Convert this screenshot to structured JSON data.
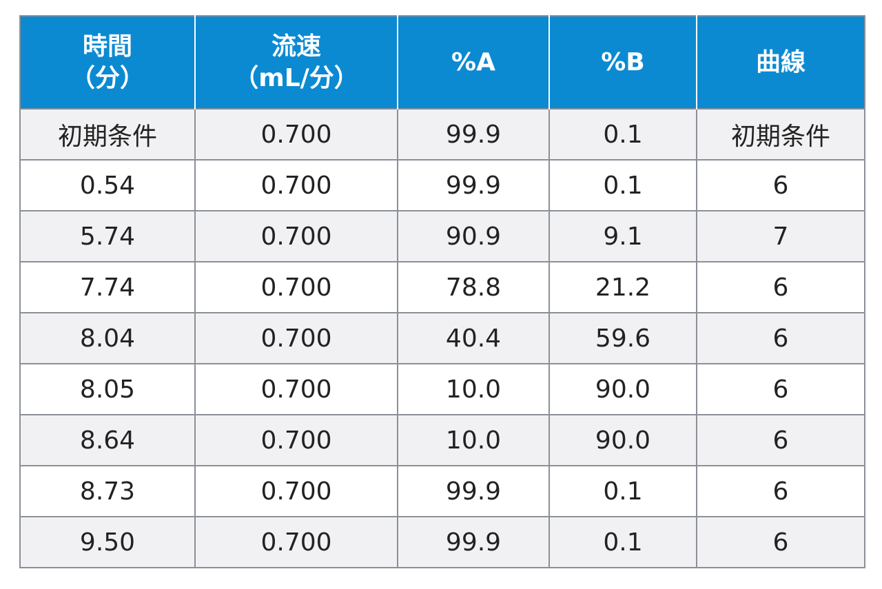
{
  "table": {
    "headers": [
      [
        "時間",
        "（分）"
      ],
      [
        "流速",
        "（mL/分）"
      ],
      [
        "%A"
      ],
      [
        "%B"
      ],
      [
        "曲線"
      ]
    ],
    "rows": [
      [
        "初期条件",
        "0.700",
        "99.9",
        "0.1",
        "初期条件"
      ],
      [
        "0.54",
        "0.700",
        "99.9",
        "0.1",
        "6"
      ],
      [
        "5.74",
        "0.700",
        "90.9",
        "9.1",
        "7"
      ],
      [
        "7.74",
        "0.700",
        "78.8",
        "21.2",
        "6"
      ],
      [
        "8.04",
        "0.700",
        "40.4",
        "59.6",
        "6"
      ],
      [
        "8.05",
        "0.700",
        "10.0",
        "90.0",
        "6"
      ],
      [
        "8.64",
        "0.700",
        "10.0",
        "90.0",
        "6"
      ],
      [
        "8.73",
        "0.700",
        "99.9",
        "0.1",
        "6"
      ],
      [
        "9.50",
        "0.700",
        "99.9",
        "0.1",
        "6"
      ]
    ],
    "colors": {
      "header_bg": "#0b8ad2",
      "header_text": "#ffffff",
      "row_alt_bg": "#f1f1f3",
      "grid": "#8a8f98"
    }
  }
}
